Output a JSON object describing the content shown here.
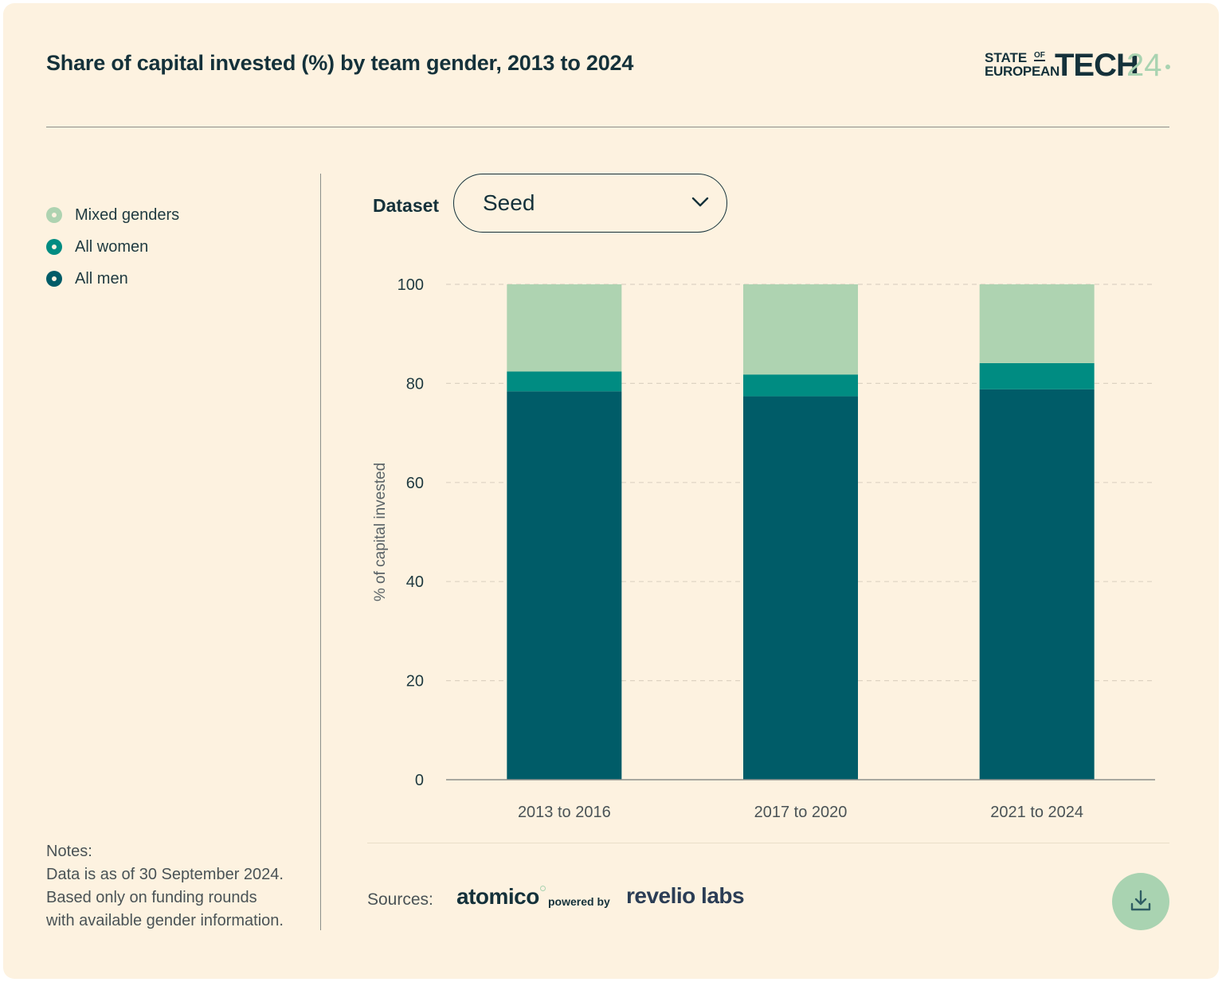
{
  "title": "Share of capital invested (%) by team gender, 2013 to 2024",
  "logo": {
    "state": "STATE",
    "of": "OF",
    "european": "EUROPEAN",
    "tech": "TECH",
    "year": "24"
  },
  "legend": [
    {
      "label": "Mixed genders",
      "color": "#aed3b1"
    },
    {
      "label": "All women",
      "color": "#008c82"
    },
    {
      "label": "All men",
      "color": "#005c68"
    }
  ],
  "dataset": {
    "label": "Dataset",
    "selected": "Seed"
  },
  "notes": {
    "heading": "Notes:",
    "lines": [
      "Data is as of 30 September 2024.",
      "Based only on funding rounds",
      "with available gender information."
    ]
  },
  "sources": {
    "label": "Sources:",
    "atomico": "atomico",
    "powered_by": "powered by",
    "revelio": "revelio labs"
  },
  "chart_data": {
    "type": "bar",
    "stacked": true,
    "title": "Share of capital invested (%) by team gender, 2013 to 2024",
    "xlabel": "",
    "ylabel": "% of capital invested",
    "ylim": [
      0,
      100
    ],
    "yticks": [
      0,
      20,
      40,
      60,
      80,
      100
    ],
    "grid": true,
    "categories": [
      "2013 to 2016",
      "2017 to 2020",
      "2021 to 2024"
    ],
    "series": [
      {
        "name": "All men",
        "color": "#005c68",
        "values": [
          78.4,
          77.4,
          78.8
        ]
      },
      {
        "name": "All women",
        "color": "#008c82",
        "values": [
          4.0,
          4.4,
          5.3
        ]
      },
      {
        "name": "Mixed genders",
        "color": "#aed3b1",
        "values": [
          17.6,
          18.2,
          15.9
        ]
      }
    ]
  }
}
